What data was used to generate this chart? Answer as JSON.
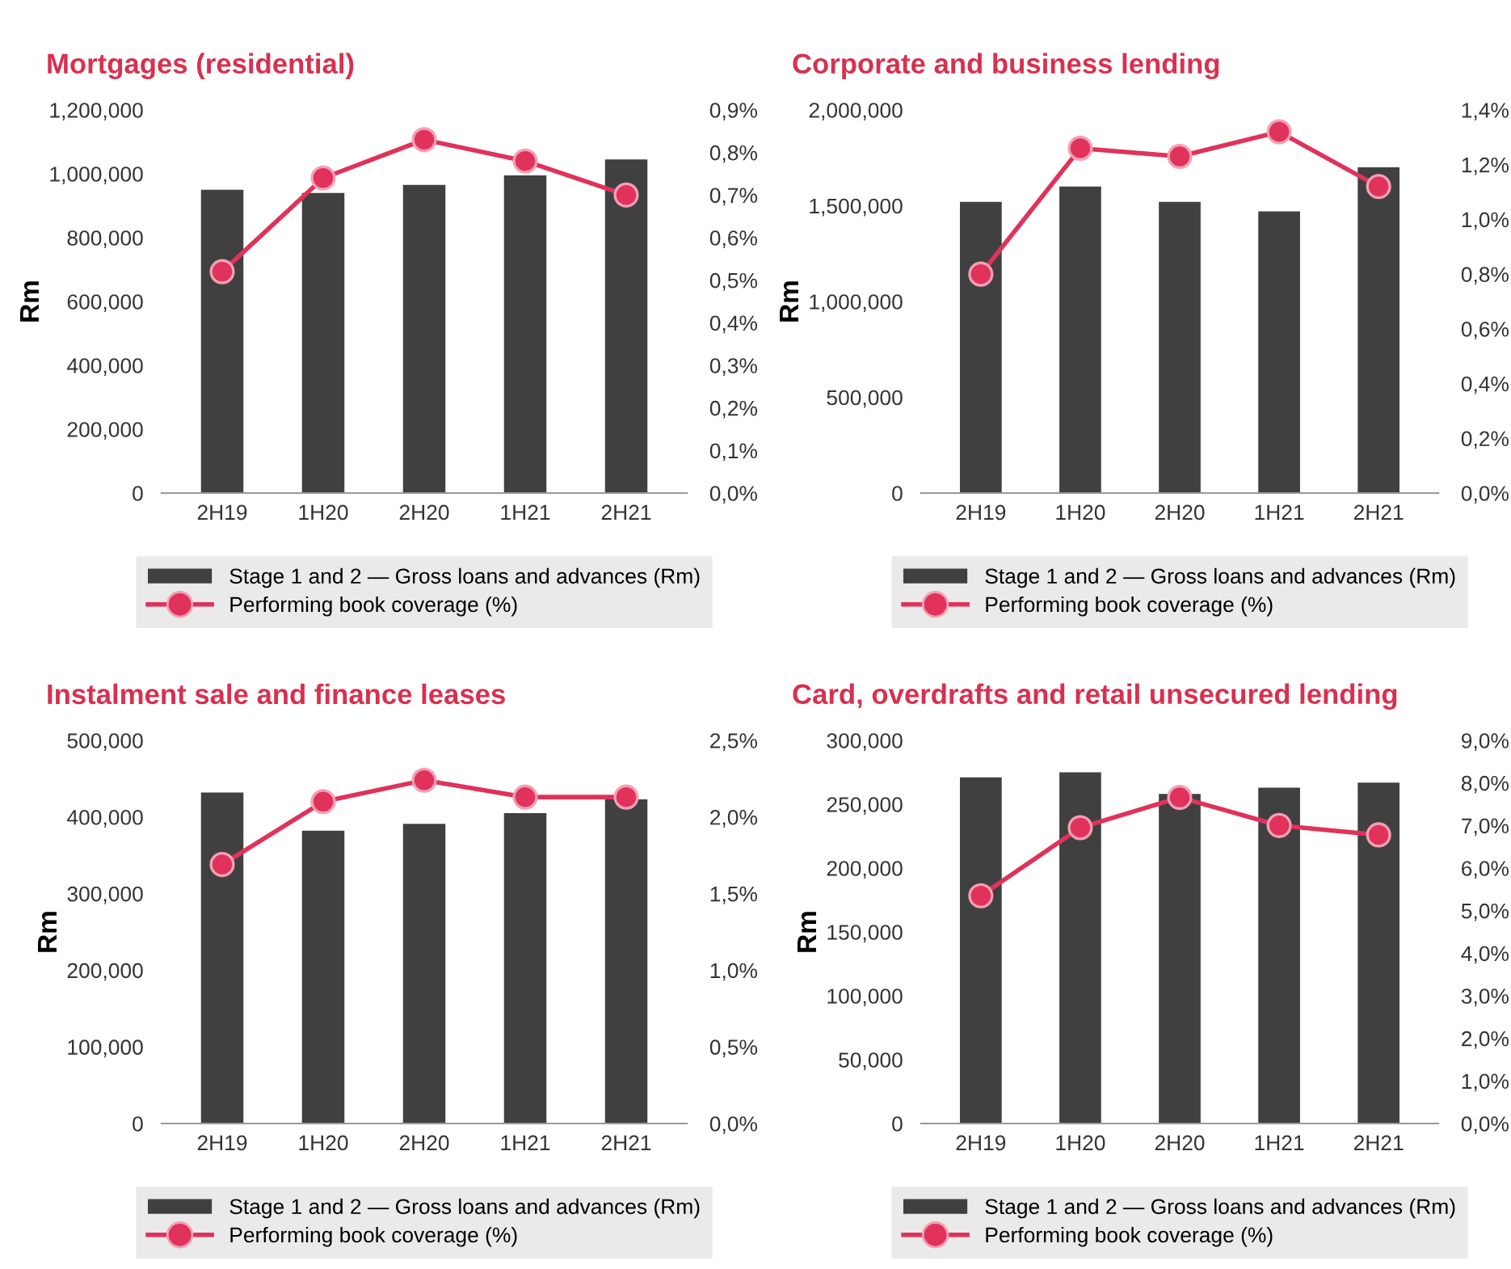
{
  "chart_data": [
    {
      "type": "bar",
      "title": "Mortgages (residential)",
      "ylabel": "Rm",
      "categories": [
        "2H19",
        "1H20",
        "2H20",
        "1H21",
        "2H21"
      ],
      "legend": "bottom",
      "series": [
        {
          "name": "Stage 1 and 2 — Gross loans and advances (Rm)",
          "color": "#404040",
          "values": [
            950000,
            940000,
            965000,
            995000,
            1045000
          ]
        },
        {
          "name": "Performing book coverage (%)",
          "type": "line",
          "axis": "y2",
          "marker": "circle",
          "color": "#e0325a",
          "values": [
            0.52,
            0.74,
            0.83,
            0.78,
            0.7
          ]
        }
      ],
      "ylim": [
        0,
        1200000
      ],
      "yticks": [
        0,
        {
          "value": 200000,
          "label": "200,000"
        },
        {
          "value": 400000,
          "label": "400,000"
        },
        {
          "value": 600000,
          "label": "600,000"
        },
        {
          "value": 800000,
          "label": "800,000"
        },
        {
          "value": 1000000,
          "label": "1,000,000"
        },
        {
          "value": 1200000,
          "label": "1,200,000"
        }
      ],
      "y2lim": [
        0,
        0.9
      ],
      "y2ticks": [
        {
          "value": 0,
          "label": "0,0%"
        },
        {
          "value": 0.1,
          "label": "0,1%"
        },
        {
          "value": 0.2,
          "label": "0,2%"
        },
        {
          "value": 0.3,
          "label": "0,3%"
        },
        {
          "value": 0.4,
          "label": "0,4%"
        },
        {
          "value": 0.5,
          "label": "0,5%"
        },
        {
          "value": 0.6,
          "label": "0,6%"
        },
        {
          "value": 0.7,
          "label": "0,7%"
        },
        {
          "value": 0.8,
          "label": "0,8%"
        },
        {
          "value": 0.9,
          "label": "0,9%"
        }
      ]
    },
    {
      "type": "bar",
      "title": "Corporate and business lending",
      "ylabel": "Rm",
      "categories": [
        "2H19",
        "1H20",
        "2H20",
        "1H21",
        "2H21"
      ],
      "legend": "bottom",
      "series": [
        {
          "name": "Stage 1 and 2 — Gross loans and advances (Rm)",
          "color": "#404040",
          "values": [
            1520000,
            1600000,
            1520000,
            1470000,
            1700000
          ]
        },
        {
          "name": "Performing book coverage (%)",
          "type": "line",
          "axis": "y2",
          "marker": "circle",
          "color": "#e0325a",
          "values": [
            0.8,
            1.26,
            1.23,
            1.32,
            1.12
          ]
        }
      ],
      "ylim": [
        0,
        2000000
      ],
      "yticks": [
        0,
        {
          "value": 500000,
          "label": "500,000"
        },
        {
          "value": 1000000,
          "label": "1,000,000"
        },
        {
          "value": 1500000,
          "label": "1,500,000"
        },
        {
          "value": 2000000,
          "label": "2,000,000"
        }
      ],
      "y2lim": [
        0,
        1.4
      ],
      "y2ticks": [
        {
          "value": 0,
          "label": "0,0%"
        },
        {
          "value": 0.2,
          "label": "0,2%"
        },
        {
          "value": 0.4,
          "label": "0,4%"
        },
        {
          "value": 0.6,
          "label": "0,6%"
        },
        {
          "value": 0.8,
          "label": "0,8%"
        },
        {
          "value": 1.0,
          "label": "1,0%"
        },
        {
          "value": 1.2,
          "label": "1,2%"
        },
        {
          "value": 1.4,
          "label": "1,4%"
        }
      ]
    },
    {
      "type": "bar",
      "title": "Instalment sale and finance leases",
      "ylabel": "Rm",
      "categories": [
        "2H19",
        "1H20",
        "2H20",
        "1H21",
        "2H21"
      ],
      "legend": "bottom",
      "series": [
        {
          "name": "Stage 1 and 2 — Gross loans and advances (Rm)",
          "color": "#404040",
          "values": [
            432000,
            382000,
            391000,
            405000,
            423000
          ]
        },
        {
          "name": "Performing book coverage (%)",
          "type": "line",
          "axis": "y2",
          "marker": "circle",
          "color": "#e0325a",
          "values": [
            1.69,
            2.1,
            2.24,
            2.13,
            2.13
          ]
        }
      ],
      "ylim": [
        0,
        500000
      ],
      "yticks": [
        0,
        {
          "value": 100000,
          "label": "100,000"
        },
        {
          "value": 200000,
          "label": "200,000"
        },
        {
          "value": 300000,
          "label": "300,000"
        },
        {
          "value": 400000,
          "label": "400,000"
        },
        {
          "value": 500000,
          "label": "500,000"
        }
      ],
      "y2lim": [
        0,
        2.5
      ],
      "y2ticks": [
        {
          "value": 0,
          "label": "0,0%"
        },
        {
          "value": 0.5,
          "label": "0,5%"
        },
        {
          "value": 1.0,
          "label": "1,0%"
        },
        {
          "value": 1.5,
          "label": "1,5%"
        },
        {
          "value": 2.0,
          "label": "2,0%"
        },
        {
          "value": 2.5,
          "label": "2,5%"
        }
      ]
    },
    {
      "type": "bar",
      "title": "Card, overdrafts and retail unsecured lending",
      "ylabel": "Rm",
      "categories": [
        "2H19",
        "1H20",
        "2H20",
        "1H21",
        "2H21"
      ],
      "legend": "bottom",
      "series": [
        {
          "name": "Stage 1 and 2 — Gross loans and advances (Rm)",
          "color": "#404040",
          "values": [
            271000,
            275000,
            258000,
            263000,
            267000
          ]
        },
        {
          "name": "Performing book coverage (%)",
          "type": "line",
          "axis": "y2",
          "marker": "circle",
          "color": "#e0325a",
          "values": [
            5.35,
            6.95,
            7.66,
            7.0,
            6.78
          ]
        }
      ],
      "ylim": [
        0,
        300000
      ],
      "yticks": [
        0,
        {
          "value": 50000,
          "label": "50,000"
        },
        {
          "value": 100000,
          "label": "100,000"
        },
        {
          "value": 150000,
          "label": "150,000"
        },
        {
          "value": 200000,
          "label": "200,000"
        },
        {
          "value": 250000,
          "label": "250,000"
        },
        {
          "value": 300000,
          "label": "300,000"
        }
      ],
      "y2lim": [
        0,
        9.0
      ],
      "y2ticks": [
        {
          "value": 0,
          "label": "0,0%"
        },
        {
          "value": 1.0,
          "label": "1,0%"
        },
        {
          "value": 2.0,
          "label": "2,0%"
        },
        {
          "value": 3.0,
          "label": "3,0%"
        },
        {
          "value": 4.0,
          "label": "4,0%"
        },
        {
          "value": 5.0,
          "label": "5,0%"
        },
        {
          "value": 6.0,
          "label": "6,0%"
        },
        {
          "value": 7.0,
          "label": "7,0%"
        },
        {
          "value": 8.0,
          "label": "8,0%"
        },
        {
          "value": 9.0,
          "label": "9,0%"
        }
      ]
    }
  ]
}
